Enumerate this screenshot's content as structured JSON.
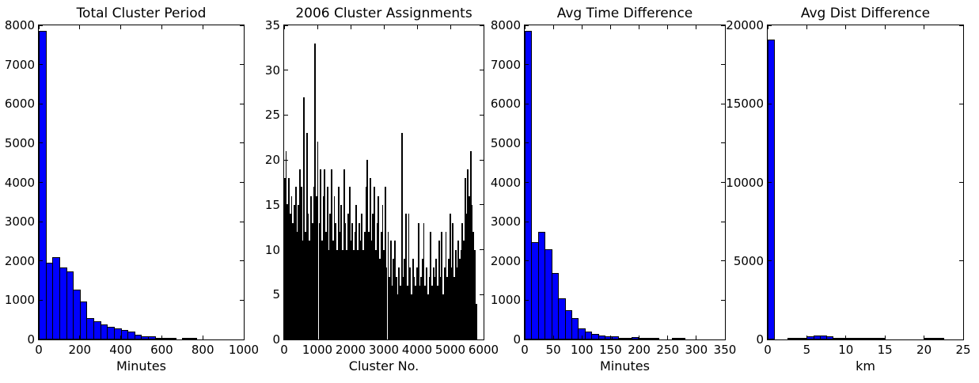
{
  "figure": {
    "background": "#ffffff",
    "frame_color": "#000000",
    "text_color": "#000000",
    "histogram_fill_color": "#0000ff",
    "histogram_edge_color": "#000000",
    "dense_bar_color": "#000000"
  },
  "chart_data": [
    {
      "type": "bar",
      "subtype": "histogram",
      "title": "Total Cluster Period",
      "xlabel": "Minutes",
      "ylabel": "",
      "xlim": [
        0,
        1000
      ],
      "ylim": [
        0,
        8000
      ],
      "xticks": [
        0,
        200,
        400,
        600,
        800,
        1000
      ],
      "yticks": [
        0,
        1000,
        2000,
        3000,
        4000,
        5000,
        6000,
        7000,
        8000
      ],
      "grid": false,
      "legend": null,
      "bar_color": "#0000ff",
      "bin_start": 0,
      "bin_width": 33.333,
      "values": [
        7850,
        1950,
        2090,
        1840,
        1725,
        1270,
        970,
        540,
        455,
        385,
        320,
        280,
        250,
        200,
        115,
        75,
        85,
        40,
        15,
        8,
        0,
        50,
        40,
        0,
        0,
        0,
        0,
        0,
        0,
        0
      ]
    },
    {
      "type": "bar",
      "subtype": "dense-bar-series",
      "title": "2006 Cluster Assignments",
      "xlabel": "Cluster No.",
      "ylabel": "",
      "xlim": [
        0,
        6000
      ],
      "ylim": [
        0,
        35
      ],
      "xticks": [
        0,
        1000,
        2000,
        3000,
        4000,
        5000,
        6000
      ],
      "yticks": [
        0,
        5,
        10,
        15,
        20,
        25,
        30,
        35
      ],
      "grid": false,
      "legend": null,
      "bar_color": "#000000",
      "bin_start": 0,
      "bin_width": 41.43,
      "values": [
        18,
        21,
        15,
        18,
        14,
        16,
        13,
        15,
        17,
        12,
        15,
        19,
        17,
        11,
        27,
        12,
        23,
        14,
        11,
        16,
        13,
        17,
        33,
        16,
        22,
        13,
        19,
        11,
        16,
        19,
        12,
        17,
        10,
        14,
        19,
        11,
        16,
        13,
        10,
        17,
        12,
        15,
        10,
        19,
        13,
        10,
        14,
        17,
        11,
        13,
        10,
        12,
        15,
        10,
        13,
        11,
        14,
        10,
        12,
        17,
        20,
        12,
        18,
        11,
        14,
        17,
        10,
        13,
        16,
        9,
        12,
        15,
        10,
        17,
        8,
        12,
        7,
        11,
        6,
        9,
        11,
        7,
        5,
        8,
        6,
        23,
        7,
        9,
        14,
        6,
        14,
        8,
        5,
        9,
        7,
        6,
        8,
        13,
        6,
        7,
        9,
        13,
        6,
        8,
        5,
        7,
        12,
        6,
        8,
        7,
        9,
        6,
        11,
        7,
        12,
        5,
        8,
        12,
        7,
        9,
        14,
        8,
        13,
        7,
        10,
        8,
        11,
        9,
        10,
        13,
        11,
        18,
        14,
        19,
        16,
        21,
        15,
        12,
        10,
        4
      ]
    },
    {
      "type": "bar",
      "subtype": "histogram",
      "title": "Avg Time Difference",
      "xlabel": "Minutes",
      "ylabel": "",
      "xlim": [
        0,
        350
      ],
      "ylim": [
        0,
        8000
      ],
      "xticks": [
        0,
        50,
        100,
        150,
        200,
        250,
        300,
        350
      ],
      "yticks": [
        0,
        1000,
        2000,
        3000,
        4000,
        5000,
        6000,
        7000,
        8000
      ],
      "grid": false,
      "legend": null,
      "bar_color": "#0000ff",
      "bin_start": 0,
      "bin_width": 11.667,
      "values": [
        7850,
        2470,
        2740,
        2300,
        1700,
        1040,
        740,
        540,
        290,
        210,
        150,
        110,
        80,
        75,
        35,
        35,
        60,
        12,
        5,
        3,
        0,
        0,
        25,
        20,
        0,
        0,
        0,
        0,
        0,
        0
      ]
    },
    {
      "type": "bar",
      "subtype": "histogram",
      "title": "Avg Dist Difference",
      "xlabel": "km",
      "ylabel": "",
      "xlim": [
        0,
        25
      ],
      "ylim": [
        0,
        20000
      ],
      "xticks": [
        0,
        5,
        10,
        15,
        20,
        25
      ],
      "yticks": [
        0,
        5000,
        10000,
        15000,
        20000
      ],
      "grid": false,
      "legend": null,
      "bar_color": "#0000ff",
      "bin_start": 0,
      "bin_width": 0.8333,
      "values": [
        19100,
        0,
        0,
        20,
        65,
        115,
        205,
        250,
        250,
        200,
        115,
        65,
        65,
        100,
        65,
        20,
        5,
        5,
        0,
        0,
        0,
        0,
        0,
        0,
        50,
        50,
        40,
        0,
        0,
        0
      ]
    }
  ]
}
